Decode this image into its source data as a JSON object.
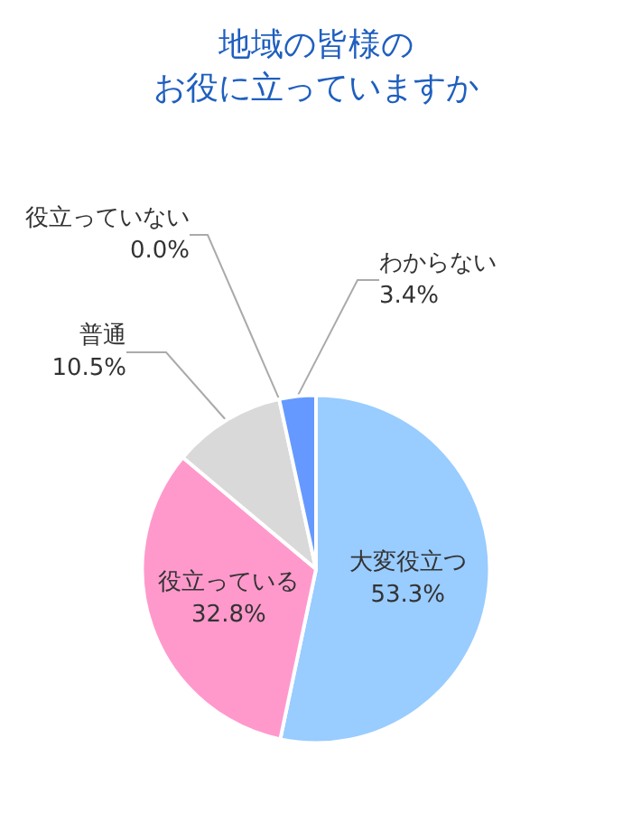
{
  "chart_data": {
    "type": "pie",
    "title": "地域の皆様のお役に立っていますか",
    "categories": [
      "大変役立つ",
      "役立っている",
      "普通",
      "役立っていない",
      "わからない"
    ],
    "values": [
      53.3,
      32.8,
      10.5,
      0.0,
      3.4
    ],
    "value_labels": [
      "53.3%",
      "32.8%",
      "10.5%",
      "0.0%",
      "3.4%"
    ],
    "colors": [
      "#99ccff",
      "#ff99cc",
      "#d9d9d9",
      "#ffcc66",
      "#6699ff"
    ],
    "legend": false
  }
}
